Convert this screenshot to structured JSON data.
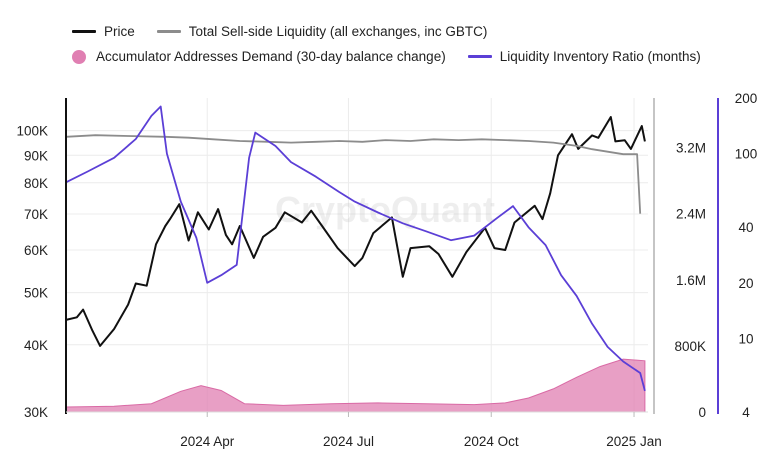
{
  "legend": [
    {
      "label": "Price",
      "color": "#111111",
      "kind": "line"
    },
    {
      "label": "Total Sell-side Liquidity (all exchanges, inc GBTC)",
      "color": "#8c8c8c",
      "kind": "line"
    },
    {
      "label": "Accumulator Addresses Demand (30-day balance change)",
      "color": "#e07fb2",
      "kind": "dot"
    },
    {
      "label": "Liquidity Inventory Ratio (months)",
      "color": "#5b3fd6",
      "kind": "line"
    }
  ],
  "watermark": "CryptoQuant",
  "chart_data": {
    "type": "line",
    "x_range": [
      "2024-01-01",
      "2025-01-10"
    ],
    "x_ticks": [
      {
        "date": "2024-04-01",
        "label": "2024 Apr"
      },
      {
        "date": "2024-07-01",
        "label": "2024 Jul"
      },
      {
        "date": "2024-10-01",
        "label": "2024 Oct"
      },
      {
        "date": "2025-01-01",
        "label": "2025 Jan"
      }
    ],
    "axes": {
      "price": {
        "scale": "log",
        "range": [
          30000,
          115000
        ],
        "ticks": [
          {
            "v": 30000,
            "label": "30K"
          },
          {
            "v": 40000,
            "label": "40K"
          },
          {
            "v": 50000,
            "label": "50K"
          },
          {
            "v": 60000,
            "label": "60K"
          },
          {
            "v": 70000,
            "label": "70K"
          },
          {
            "v": 80000,
            "label": "80K"
          },
          {
            "v": 90000,
            "label": "90K"
          },
          {
            "v": 100000,
            "label": "100K"
          }
        ]
      },
      "liquidity": {
        "scale": "linear",
        "range": [
          0,
          3800000
        ],
        "ticks": [
          {
            "v": 0,
            "label": "0"
          },
          {
            "v": 800000,
            "label": "800K"
          },
          {
            "v": 1600000,
            "label": "1.6M"
          },
          {
            "v": 2400000,
            "label": "2.4M"
          },
          {
            "v": 3200000,
            "label": "3.2M"
          }
        ]
      },
      "ratio": {
        "scale": "log",
        "range": [
          4,
          200
        ],
        "ticks": [
          {
            "v": 4,
            "label": "4"
          },
          {
            "v": 10,
            "label": "10"
          },
          {
            "v": 20,
            "label": "20"
          },
          {
            "v": 40,
            "label": "40"
          },
          {
            "v": 100,
            "label": "100"
          },
          {
            "v": 200,
            "label": "200"
          }
        ]
      }
    },
    "series": [
      {
        "name": "Price",
        "axis": "price",
        "color": "#111111",
        "style": "line",
        "points": [
          [
            "2024-01-01",
            44500
          ],
          [
            "2024-01-08",
            45000
          ],
          [
            "2024-01-12",
            46500
          ],
          [
            "2024-01-18",
            42500
          ],
          [
            "2024-01-23",
            39800
          ],
          [
            "2024-02-01",
            42800
          ],
          [
            "2024-02-10",
            47500
          ],
          [
            "2024-02-15",
            52000
          ],
          [
            "2024-02-22",
            51500
          ],
          [
            "2024-02-28",
            61500
          ],
          [
            "2024-03-05",
            66500
          ],
          [
            "2024-03-08",
            68500
          ],
          [
            "2024-03-14",
            73000
          ],
          [
            "2024-03-20",
            62500
          ],
          [
            "2024-03-26",
            70500
          ],
          [
            "2024-04-02",
            65500
          ],
          [
            "2024-04-08",
            71500
          ],
          [
            "2024-04-13",
            64000
          ],
          [
            "2024-04-17",
            61500
          ],
          [
            "2024-04-22",
            66500
          ],
          [
            "2024-05-01",
            58000
          ],
          [
            "2024-05-07",
            63500
          ],
          [
            "2024-05-15",
            66000
          ],
          [
            "2024-05-21",
            70500
          ],
          [
            "2024-06-01",
            67500
          ],
          [
            "2024-06-07",
            71000
          ],
          [
            "2024-06-14",
            66500
          ],
          [
            "2024-06-24",
            60500
          ],
          [
            "2024-07-05",
            56000
          ],
          [
            "2024-07-10",
            58000
          ],
          [
            "2024-07-17",
            64500
          ],
          [
            "2024-07-29",
            69000
          ],
          [
            "2024-08-05",
            53500
          ],
          [
            "2024-08-10",
            60500
          ],
          [
            "2024-08-22",
            61000
          ],
          [
            "2024-08-28",
            59000
          ],
          [
            "2024-09-06",
            53500
          ],
          [
            "2024-09-15",
            59500
          ],
          [
            "2024-09-27",
            66000
          ],
          [
            "2024-10-03",
            60500
          ],
          [
            "2024-10-10",
            60000
          ],
          [
            "2024-10-16",
            67500
          ],
          [
            "2024-10-29",
            72500
          ],
          [
            "2024-11-03",
            68500
          ],
          [
            "2024-11-08",
            76500
          ],
          [
            "2024-11-13",
            90000
          ],
          [
            "2024-11-22",
            98500
          ],
          [
            "2024-11-26",
            92500
          ],
          [
            "2024-12-05",
            98000
          ],
          [
            "2024-12-09",
            97000
          ],
          [
            "2024-12-17",
            106000
          ],
          [
            "2024-12-20",
            95500
          ],
          [
            "2024-12-26",
            96000
          ],
          [
            "2024-12-30",
            92500
          ],
          [
            "2025-01-06",
            102000
          ],
          [
            "2025-01-08",
            95500
          ]
        ]
      },
      {
        "name": "Total Sell-side Liquidity (all exchanges, inc GBTC)",
        "axis": "liquidity",
        "color": "#8c8c8c",
        "style": "line",
        "points": [
          [
            "2024-01-01",
            3330000
          ],
          [
            "2024-01-20",
            3350000
          ],
          [
            "2024-02-10",
            3340000
          ],
          [
            "2024-03-05",
            3330000
          ],
          [
            "2024-03-20",
            3320000
          ],
          [
            "2024-04-05",
            3300000
          ],
          [
            "2024-04-22",
            3280000
          ],
          [
            "2024-05-10",
            3270000
          ],
          [
            "2024-05-25",
            3260000
          ],
          [
            "2024-06-10",
            3270000
          ],
          [
            "2024-06-25",
            3280000
          ],
          [
            "2024-07-10",
            3270000
          ],
          [
            "2024-07-25",
            3290000
          ],
          [
            "2024-08-10",
            3280000
          ],
          [
            "2024-08-25",
            3300000
          ],
          [
            "2024-09-10",
            3290000
          ],
          [
            "2024-09-25",
            3300000
          ],
          [
            "2024-10-10",
            3290000
          ],
          [
            "2024-10-25",
            3280000
          ],
          [
            "2024-11-10",
            3260000
          ],
          [
            "2024-11-25",
            3220000
          ],
          [
            "2024-12-05",
            3180000
          ],
          [
            "2024-12-15",
            3150000
          ],
          [
            "2024-12-25",
            3120000
          ],
          [
            "2025-01-03",
            3120000
          ],
          [
            "2025-01-05",
            2400000
          ]
        ]
      },
      {
        "name": "Accumulator Addresses Demand (30-day balance change)",
        "axis": "liquidity",
        "color": "#e07fb2",
        "style": "area",
        "points": [
          [
            "2024-01-01",
            60000
          ],
          [
            "2024-02-01",
            70000
          ],
          [
            "2024-02-25",
            100000
          ],
          [
            "2024-03-15",
            250000
          ],
          [
            "2024-03-28",
            320000
          ],
          [
            "2024-04-10",
            260000
          ],
          [
            "2024-04-25",
            100000
          ],
          [
            "2024-05-20",
            80000
          ],
          [
            "2024-06-20",
            100000
          ],
          [
            "2024-07-20",
            110000
          ],
          [
            "2024-08-20",
            100000
          ],
          [
            "2024-09-20",
            90000
          ],
          [
            "2024-10-10",
            110000
          ],
          [
            "2024-10-25",
            170000
          ],
          [
            "2024-11-10",
            280000
          ],
          [
            "2024-11-25",
            420000
          ],
          [
            "2024-12-10",
            550000
          ],
          [
            "2024-12-25",
            640000
          ],
          [
            "2025-01-08",
            620000
          ]
        ]
      },
      {
        "name": "Liquidity Inventory Ratio (months)",
        "axis": "ratio",
        "color": "#5b3fd6",
        "style": "line",
        "points": [
          [
            "2024-01-01",
            70
          ],
          [
            "2024-01-15",
            80
          ],
          [
            "2024-02-01",
            95
          ],
          [
            "2024-02-15",
            120
          ],
          [
            "2024-02-25",
            160
          ],
          [
            "2024-03-02",
            180
          ],
          [
            "2024-03-06",
            100
          ],
          [
            "2024-03-15",
            55
          ],
          [
            "2024-03-25",
            35
          ],
          [
            "2024-04-01",
            20
          ],
          [
            "2024-04-10",
            22
          ],
          [
            "2024-04-20",
            25
          ],
          [
            "2024-04-28",
            95
          ],
          [
            "2024-05-02",
            130
          ],
          [
            "2024-05-15",
            110
          ],
          [
            "2024-05-25",
            90
          ],
          [
            "2024-06-10",
            75
          ],
          [
            "2024-06-25",
            62
          ],
          [
            "2024-07-05",
            55
          ],
          [
            "2024-07-20",
            48
          ],
          [
            "2024-08-05",
            42
          ],
          [
            "2024-08-20",
            38
          ],
          [
            "2024-09-05",
            34
          ],
          [
            "2024-09-20",
            36
          ],
          [
            "2024-10-05",
            45
          ],
          [
            "2024-10-15",
            52
          ],
          [
            "2024-10-25",
            40
          ],
          [
            "2024-11-05",
            32
          ],
          [
            "2024-11-15",
            22
          ],
          [
            "2024-11-25",
            17
          ],
          [
            "2024-12-05",
            12
          ],
          [
            "2024-12-15",
            9
          ],
          [
            "2024-12-25",
            7.5
          ],
          [
            "2025-01-05",
            6.5
          ],
          [
            "2025-01-08",
            5.2
          ]
        ]
      }
    ]
  }
}
